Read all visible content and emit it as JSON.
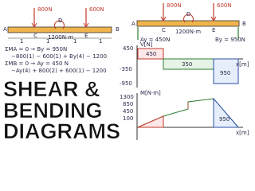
{
  "left_beam": {
    "loads": [
      "800N",
      "600N"
    ],
    "moment": "1200N·m",
    "points": [
      "A",
      "C",
      "D",
      "E",
      "B"
    ],
    "spans": [
      "1",
      "1",
      "1",
      "1"
    ]
  },
  "equations": [
    "ΣMA = 0 → By = 950N",
    "−800(1) − 600(1) + By(4) − 1200",
    "ΣMB = 0 → Ay = 450 N",
    "−Ay(4) + 800(2) + 600(1) − 1200"
  ],
  "title": [
    "SHEAR &",
    "BENDING",
    "DIAGRAMS"
  ],
  "right_beam": {
    "loads": [
      "800N",
      "600N"
    ],
    "moment": "1200N·m",
    "points": [
      "A",
      "C",
      "D",
      "E",
      "B"
    ],
    "reactions": [
      "Ay = 450N",
      "By = 950N"
    ]
  },
  "shear": {
    "axis_y": "V[N]",
    "axis_x": "x[m]",
    "ticks": [
      "450",
      "-350",
      "-950"
    ],
    "areas": [
      "450",
      "350",
      "950"
    ]
  },
  "moment": {
    "axis_y": "M[N·m]",
    "axis_x": "x[m]",
    "ticks": [
      "1300",
      "850",
      "450",
      "100"
    ],
    "areas": [
      "950"
    ]
  }
}
